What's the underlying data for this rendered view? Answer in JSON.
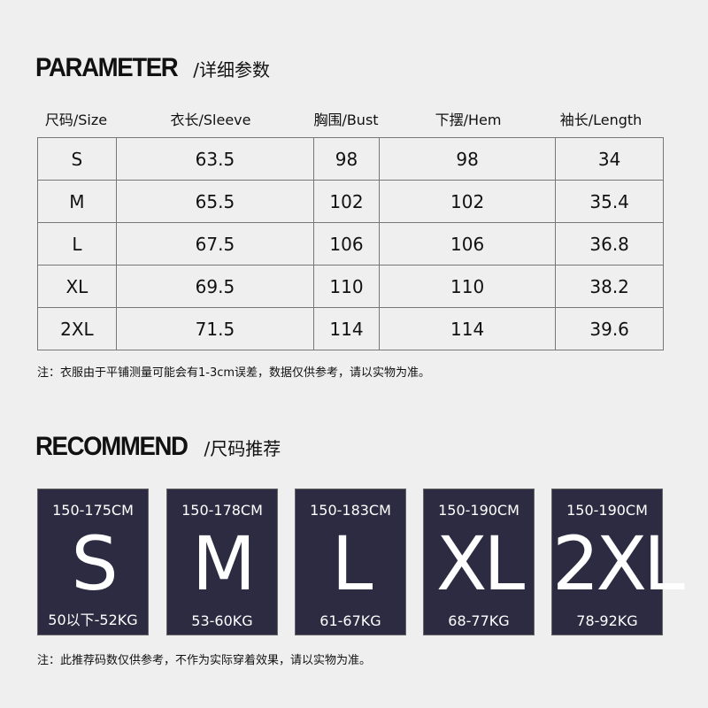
{
  "parameter": {
    "title": "PARAMETER",
    "subtitle": "/详细参数",
    "columns": [
      "尺码/Size",
      "衣长/Sleeve",
      "胸围/Bust",
      "下摆/Hem",
      "袖长/Length"
    ],
    "rows": [
      [
        "S",
        "63.5",
        "98",
        "98",
        "34"
      ],
      [
        "M",
        "65.5",
        "102",
        "102",
        "35.4"
      ],
      [
        "L",
        "67.5",
        "106",
        "106",
        "36.8"
      ],
      [
        "XL",
        "69.5",
        "110",
        "110",
        "38.2"
      ],
      [
        "2XL",
        "71.5",
        "114",
        "114",
        "39.6"
      ]
    ],
    "note": "注：衣服由于平铺测量可能会有1-3cm误差，数据仅供参考，请以实物为准。"
  },
  "recommend": {
    "title": "RECOMMEND",
    "subtitle": "/尺码推荐",
    "cards": [
      {
        "height": "150-175CM",
        "size": "S",
        "weight": "50以下-52KG"
      },
      {
        "height": "150-178CM",
        "size": "M",
        "weight": "53-60KG"
      },
      {
        "height": "150-183CM",
        "size": "L",
        "weight": "61-67KG"
      },
      {
        "height": "150-190CM",
        "size": "XL",
        "weight": "68-77KG"
      },
      {
        "height": "150-190CM",
        "size": "2XL",
        "weight": "78-92KG"
      }
    ],
    "note": "注：此推荐码数仅供参考，不作为实际穿着效果，请以实物为准。"
  },
  "colors": {
    "background": "#efefef",
    "card": "#2d2b42",
    "border": "#777777"
  }
}
